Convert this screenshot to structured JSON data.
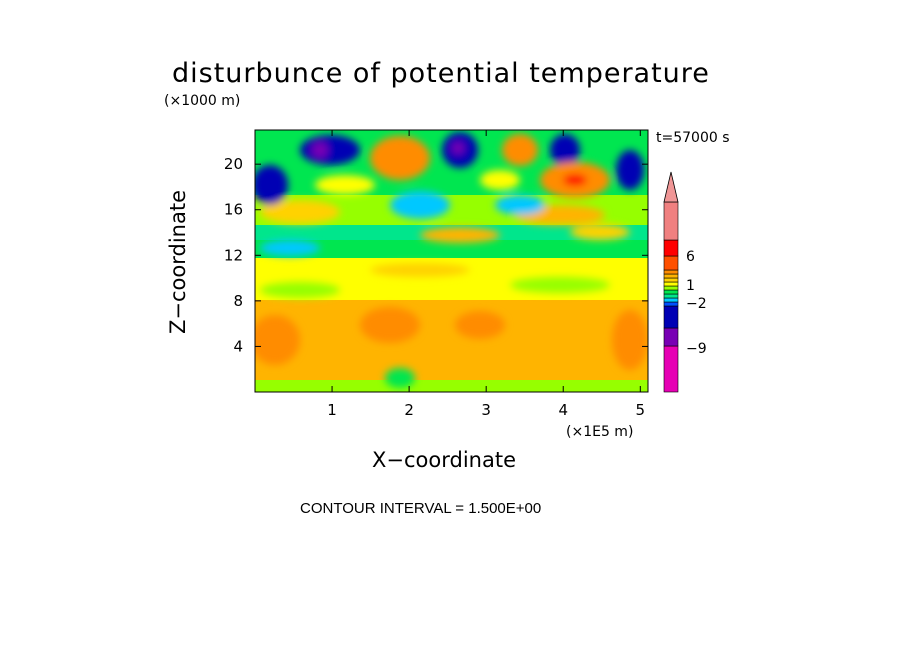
{
  "chart_data": {
    "type": "heatmap",
    "title": "disturbunce of potential temperature",
    "xlabel": "X−coordinate",
    "ylabel": "Z−coordinate",
    "x_unit_label": "(×1E5 m)",
    "y_unit_label": "(×1000 m)",
    "time_label": "t=57000 s",
    "footer": "CONTOUR INTERVAL = 1.500E+00",
    "xlim": [
      0,
      5.1
    ],
    "ylim": [
      0,
      23
    ],
    "x_ticks": [
      "1",
      "2",
      "3",
      "4",
      "5"
    ],
    "y_ticks": [
      "4",
      "8",
      "12",
      "16",
      "20"
    ],
    "colorbar": {
      "tick_labels": [
        "6",
        "1",
        "−2",
        "−9"
      ],
      "colors": [
        "#e600b4",
        "#7800b4",
        "#0000b4",
        "#0050ff",
        "#00c8ff",
        "#00e68c",
        "#00e650",
        "#96ff00",
        "#ffff00",
        "#ffd200",
        "#ffb400",
        "#ff8c00",
        "#ff5000",
        "#ff0000",
        "#f08080",
        "#f09696"
      ]
    },
    "bands": [
      {
        "z_range": [
          0,
          1
        ],
        "level": "light warm (~1-2)"
      },
      {
        "z_range": [
          1,
          7
        ],
        "level": "warm (~2-4)"
      },
      {
        "z_range": [
          7,
          12
        ],
        "level": "near zero to slightly warm (~1)"
      },
      {
        "z_range": [
          12,
          15
        ],
        "level": "slightly cool (~-1 to -2)"
      },
      {
        "z_range": [
          15,
          18
        ],
        "level": "mixed warm/cool (~-2 to 3)"
      },
      {
        "z_range": [
          18,
          23
        ],
        "level": "strong warm and cold anomalies (~-10 to 8)"
      }
    ]
  }
}
